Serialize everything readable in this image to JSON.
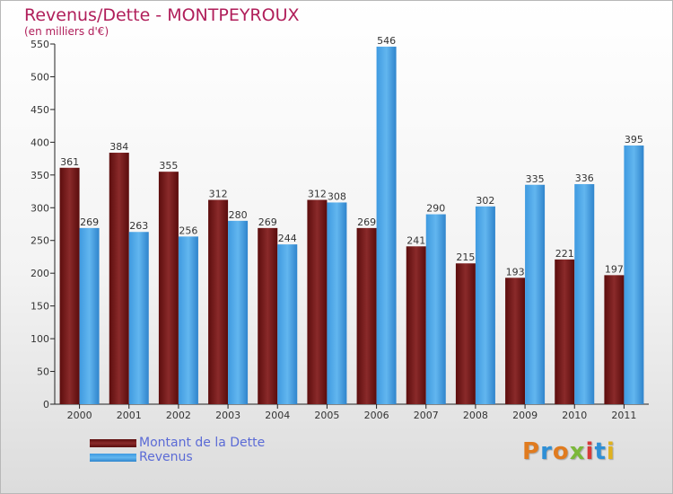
{
  "title": "Revenus/Dette - MONTPEYROUX",
  "subtitle": "(en milliers d'€)",
  "chart_data": {
    "type": "bar",
    "categories": [
      "2000",
      "2001",
      "2002",
      "2003",
      "2004",
      "2005",
      "2006",
      "2007",
      "2008",
      "2009",
      "2010",
      "2011"
    ],
    "series": [
      {
        "name": "Montant de la Dette",
        "values": [
          361,
          384,
          355,
          312,
          269,
          312,
          269,
          241,
          215,
          193,
          221,
          197
        ],
        "color": "#7a1a1a"
      },
      {
        "name": "Revenus",
        "values": [
          269,
          263,
          256,
          280,
          244,
          308,
          546,
          290,
          302,
          335,
          336,
          395
        ],
        "color": "#4da6e8"
      }
    ],
    "ylim": [
      0,
      550
    ],
    "yticks": [
      0,
      50,
      100,
      150,
      200,
      250,
      300,
      350,
      400,
      450,
      500,
      550
    ],
    "grid": false,
    "legend_position": "bottom-left"
  },
  "legend": {
    "dette_label": "Montant de la Dette",
    "revenus_label": "Revenus"
  },
  "logo_text": "Proxiti",
  "colors": {
    "title": "#b01e5a",
    "dette": "#7a1a1a",
    "revenus": "#4da6e8",
    "legend_text": "#5b6bd6"
  }
}
